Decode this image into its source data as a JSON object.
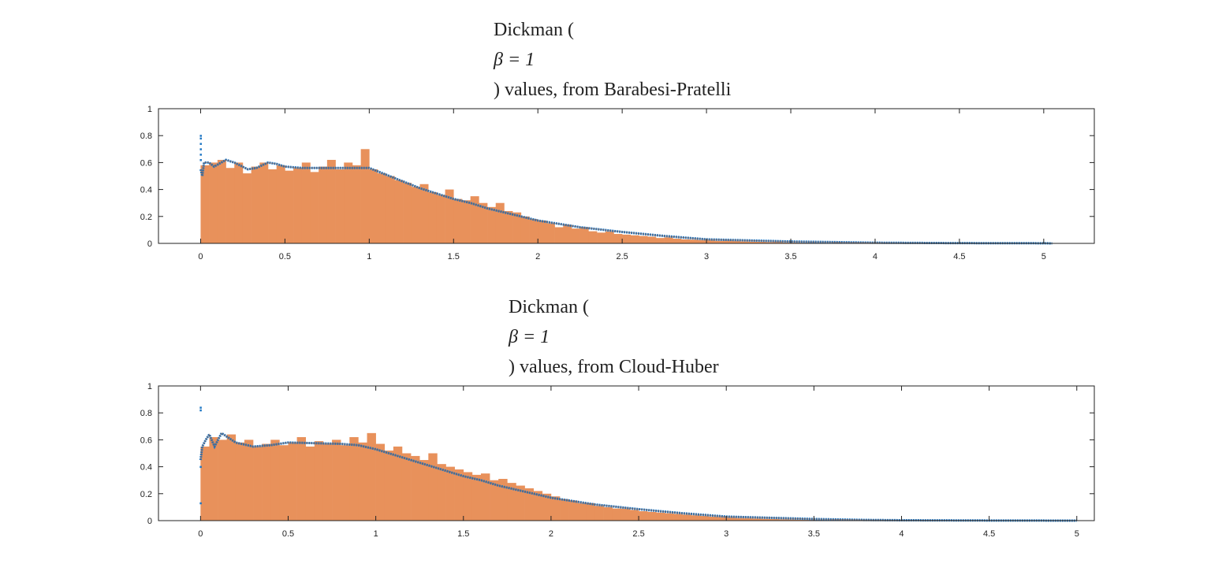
{
  "colors": {
    "histogram": "#e8915b",
    "curve": "#1f77c4",
    "curve_overlap": "#8a5a44",
    "axis": "#222222"
  },
  "chart_data": [
    {
      "type": "bar",
      "title_lines": [
        "Dickman (",
        "β = 1",
        ") values, from Barabesi-Pratelli"
      ],
      "xlim": [
        -0.25,
        5.3
      ],
      "ylim": [
        0,
        1
      ],
      "xticks": [
        "0",
        "0.5",
        "1",
        "1.5",
        "2",
        "2.5",
        "3",
        "3.5",
        "4",
        "4.5",
        "5"
      ],
      "yticks": [
        "0",
        "0.2",
        "0.4",
        "0.6",
        "0.8",
        "1"
      ],
      "grid": false,
      "histogram": {
        "bin_start": 0,
        "bin_width": 0.05,
        "values": [
          0.58,
          0.6,
          0.62,
          0.56,
          0.6,
          0.52,
          0.57,
          0.6,
          0.55,
          0.58,
          0.54,
          0.56,
          0.6,
          0.53,
          0.57,
          0.62,
          0.55,
          0.6,
          0.58,
          0.7,
          0.55,
          0.52,
          0.5,
          0.47,
          0.45,
          0.42,
          0.44,
          0.38,
          0.36,
          0.4,
          0.33,
          0.32,
          0.35,
          0.3,
          0.27,
          0.3,
          0.24,
          0.23,
          0.2,
          0.18,
          0.17,
          0.15,
          0.12,
          0.14,
          0.11,
          0.12,
          0.09,
          0.08,
          0.09,
          0.07,
          0.065,
          0.06,
          0.055,
          0.05,
          0.04,
          0.045,
          0.035,
          0.03,
          0.028,
          0.025,
          0.025,
          0.02,
          0.022,
          0.018,
          0.015,
          0.014,
          0.012,
          0.01,
          0.012,
          0.008,
          0.007,
          0.006,
          0.008,
          0.005,
          0.004,
          0.006,
          0.003,
          0.004,
          0.002,
          0.003,
          0.002,
          0.001,
          0.002,
          0.001,
          0.001,
          0.001,
          0,
          0.001,
          0,
          0,
          0,
          0.001,
          0,
          0,
          0,
          0,
          0,
          0,
          0,
          0,
          0.001
        ]
      },
      "curve": {
        "x": [
          0,
          0.01,
          0.02,
          0.05,
          0.08,
          0.15,
          0.2,
          0.28,
          0.33,
          0.4,
          0.45,
          0.5,
          0.6,
          1.0,
          1.1,
          1.2,
          1.3,
          1.4,
          1.5,
          1.6,
          1.7,
          1.8,
          1.9,
          2.0,
          2.25,
          2.5,
          2.75,
          3.0,
          3.5,
          4.0,
          4.5,
          5.0,
          5.05
        ],
        "y": [
          0.55,
          0.5,
          0.6,
          0.6,
          0.57,
          0.62,
          0.6,
          0.55,
          0.56,
          0.6,
          0.59,
          0.57,
          0.56,
          0.56,
          0.51,
          0.46,
          0.41,
          0.37,
          0.33,
          0.3,
          0.26,
          0.23,
          0.2,
          0.17,
          0.12,
          0.085,
          0.055,
          0.03,
          0.014,
          0.005,
          0.002,
          0.001,
          0
        ]
      },
      "spike": {
        "x": 0,
        "y": [
          0.62,
          0.66,
          0.7,
          0.74,
          0.78,
          0.8
        ]
      }
    },
    {
      "type": "bar",
      "title_lines": [
        "Dickman (",
        "β = 1",
        ") values, from Cloud-Huber"
      ],
      "xlim": [
        -0.24,
        5.1
      ],
      "ylim": [
        0,
        1
      ],
      "xticks": [
        "0",
        "0.5",
        "1",
        "1.5",
        "2",
        "2.5",
        "3",
        "3.5",
        "4",
        "4.5",
        "5"
      ],
      "yticks": [
        "0",
        "0.2",
        "0.4",
        "0.6",
        "0.8",
        "1"
      ],
      "grid": false,
      "histogram": {
        "bin_start": 0,
        "bin_width": 0.05,
        "values": [
          0.55,
          0.62,
          0.6,
          0.64,
          0.58,
          0.6,
          0.55,
          0.57,
          0.6,
          0.56,
          0.58,
          0.62,
          0.55,
          0.59,
          0.57,
          0.6,
          0.56,
          0.62,
          0.58,
          0.65,
          0.57,
          0.52,
          0.55,
          0.5,
          0.48,
          0.45,
          0.5,
          0.42,
          0.4,
          0.38,
          0.36,
          0.34,
          0.35,
          0.3,
          0.31,
          0.28,
          0.26,
          0.24,
          0.22,
          0.2,
          0.18,
          0.16,
          0.15,
          0.13,
          0.13,
          0.11,
          0.1,
          0.09,
          0.09,
          0.08,
          0.07,
          0.065,
          0.06,
          0.055,
          0.05,
          0.045,
          0.04,
          0.035,
          0.03,
          0.028,
          0.025,
          0.02,
          0.018,
          0.016,
          0.014,
          0.012,
          0.01,
          0.009,
          0.008,
          0.007,
          0.006,
          0.005,
          0.006,
          0.004,
          0.003,
          0.003,
          0.002,
          0.002,
          0.001,
          0.001,
          0.001,
          0.001,
          0,
          0.001,
          0,
          0,
          0,
          0,
          0,
          0,
          0,
          0,
          0,
          0,
          0,
          0,
          0,
          0,
          0,
          0,
          0
        ]
      },
      "curve": {
        "x": [
          0,
          0.01,
          0.03,
          0.05,
          0.08,
          0.12,
          0.2,
          0.3,
          0.4,
          0.5,
          0.8,
          0.9,
          1.0,
          1.1,
          1.2,
          1.3,
          1.4,
          1.5,
          1.6,
          1.7,
          1.8,
          1.9,
          2.0,
          2.25,
          2.5,
          2.75,
          3.0,
          3.5,
          3.8,
          4.0,
          4.5,
          5.0
        ],
        "y": [
          0.45,
          0.55,
          0.6,
          0.64,
          0.55,
          0.65,
          0.58,
          0.55,
          0.56,
          0.58,
          0.57,
          0.56,
          0.53,
          0.49,
          0.45,
          0.41,
          0.37,
          0.33,
          0.3,
          0.26,
          0.23,
          0.2,
          0.17,
          0.12,
          0.085,
          0.055,
          0.03,
          0.012,
          0.005,
          0.003,
          0.001,
          0
        ]
      },
      "spike": {
        "x": 0,
        "y": [
          0.13,
          0.4,
          0.82,
          0.84
        ]
      }
    }
  ]
}
